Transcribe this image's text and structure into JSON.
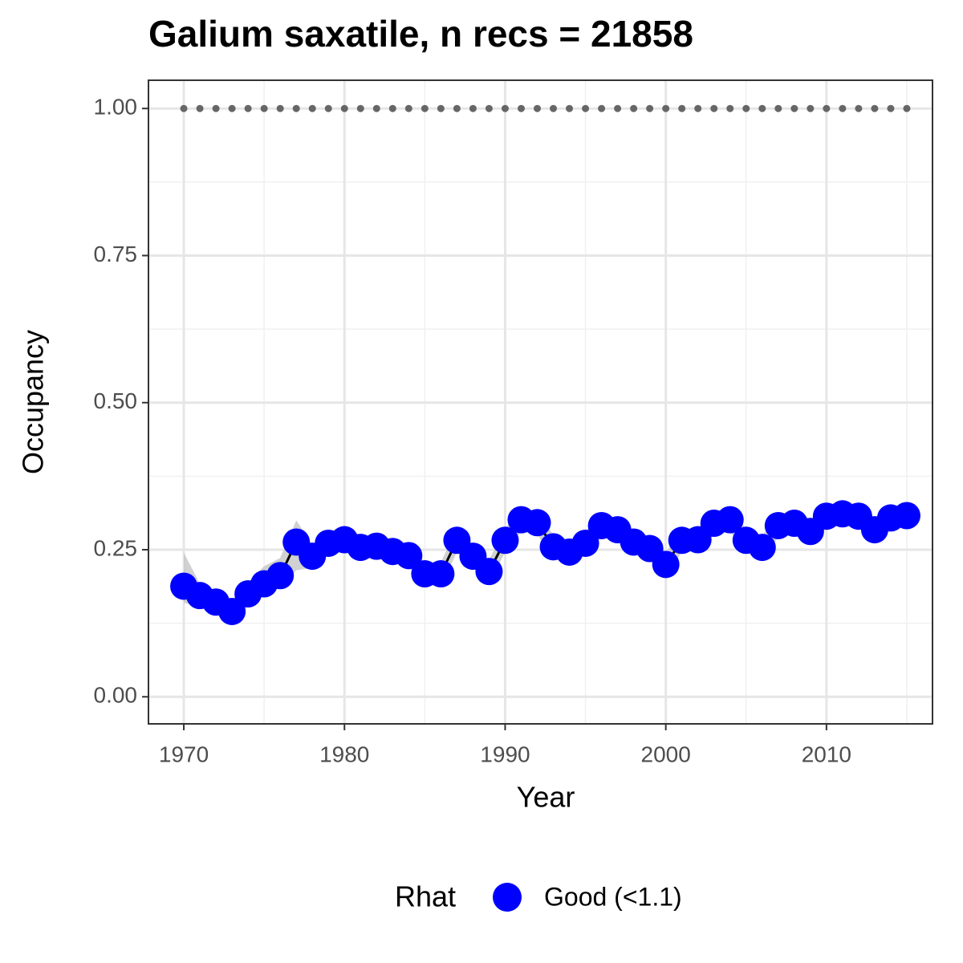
{
  "chart_data": {
    "type": "line",
    "title": "Galium saxatile, n recs = 21858",
    "xlabel": "Year",
    "ylabel": "Occupancy",
    "legend_title": "Rhat",
    "legend_position": "bottom",
    "grid": true,
    "xlim": [
      1967.8,
      2016.6
    ],
    "ylim": [
      -0.046,
      1.048
    ],
    "xticks": [
      1970,
      1980,
      1990,
      2000,
      2010
    ],
    "xminor": [
      1975,
      1985,
      1995,
      2005,
      2015
    ],
    "yticks": [
      {
        "value": 0,
        "label": "0.00"
      },
      {
        "value": 0.25,
        "label": "0.25"
      },
      {
        "value": 0.5,
        "label": "0.50"
      },
      {
        "value": 0.75,
        "label": "0.75"
      },
      {
        "value": 1,
        "label": "1.00"
      }
    ],
    "yminor": [
      0.125,
      0.375,
      0.625,
      0.875
    ],
    "hline": {
      "value": 1,
      "color": "#666666"
    },
    "x": [
      1970,
      1971,
      1972,
      1973,
      1974,
      1975,
      1976,
      1977,
      1978,
      1979,
      1980,
      1981,
      1982,
      1983,
      1984,
      1985,
      1986,
      1987,
      1988,
      1989,
      1990,
      1991,
      1992,
      1993,
      1994,
      1995,
      1996,
      1997,
      1998,
      1999,
      2000,
      2001,
      2002,
      2003,
      2004,
      2005,
      2006,
      2007,
      2008,
      2009,
      2010,
      2011,
      2012,
      2013,
      2014,
      2015
    ],
    "series": [
      {
        "name": "Good (<1.1)",
        "color": "#0000ff",
        "line_color": "#000000",
        "ribbon_color": "#bdbdbd",
        "values": [
          0.188,
          0.172,
          0.161,
          0.145,
          0.175,
          0.192,
          0.206,
          0.263,
          0.239,
          0.261,
          0.267,
          0.254,
          0.256,
          0.247,
          0.24,
          0.209,
          0.209,
          0.266,
          0.239,
          0.213,
          0.266,
          0.301,
          0.296,
          0.255,
          0.246,
          0.261,
          0.291,
          0.284,
          0.263,
          0.252,
          0.225,
          0.266,
          0.267,
          0.295,
          0.301,
          0.266,
          0.254,
          0.291,
          0.295,
          0.281,
          0.307,
          0.311,
          0.307,
          0.284,
          0.304,
          0.308
        ],
        "upper": [
          0.245,
          0.192,
          0.181,
          0.165,
          0.195,
          0.222,
          0.236,
          0.3,
          0.259,
          0.281,
          0.29,
          0.274,
          0.276,
          0.267,
          0.26,
          0.229,
          0.229,
          0.286,
          0.259,
          0.233,
          0.286,
          0.321,
          0.316,
          0.275,
          0.266,
          0.281,
          0.311,
          0.304,
          0.283,
          0.272,
          0.245,
          0.286,
          0.287,
          0.315,
          0.321,
          0.286,
          0.274,
          0.311,
          0.315,
          0.301,
          0.327,
          0.331,
          0.327,
          0.304,
          0.324,
          0.328
        ],
        "lower": [
          0.16,
          0.152,
          0.141,
          0.125,
          0.155,
          0.172,
          0.186,
          0.215,
          0.219,
          0.241,
          0.247,
          0.234,
          0.236,
          0.227,
          0.22,
          0.189,
          0.189,
          0.246,
          0.219,
          0.193,
          0.246,
          0.281,
          0.276,
          0.235,
          0.226,
          0.241,
          0.271,
          0.264,
          0.243,
          0.232,
          0.205,
          0.246,
          0.247,
          0.275,
          0.281,
          0.246,
          0.234,
          0.271,
          0.275,
          0.261,
          0.287,
          0.291,
          0.287,
          0.264,
          0.284,
          0.288
        ]
      }
    ]
  }
}
